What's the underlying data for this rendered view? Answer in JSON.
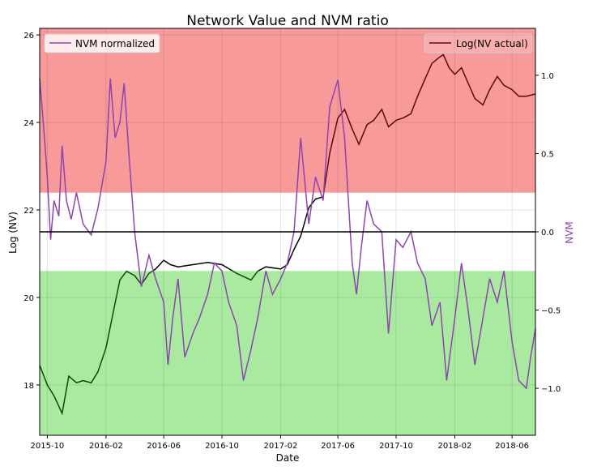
{
  "chart_data": {
    "type": "line",
    "title": "Network Value and NVM ratio",
    "xlabel": "Date",
    "ylabel_left": "Log (NV)",
    "ylabel_right": "NVM",
    "x_range": [
      "2015-09-15",
      "2018-07-20"
    ],
    "x_ticks": [
      "2015-10",
      "2016-02",
      "2016-06",
      "2016-10",
      "2017-02",
      "2017-06",
      "2017-10",
      "2018-02",
      "2018-06"
    ],
    "x_tick_dates": [
      "2015-10-01",
      "2016-02-01",
      "2016-06-01",
      "2016-10-01",
      "2017-02-01",
      "2017-06-01",
      "2017-10-01",
      "2018-02-01",
      "2018-06-01"
    ],
    "ylim_left": [
      16.85,
      26.15
    ],
    "yticks_left": [
      18,
      20,
      22,
      24,
      26
    ],
    "ylim_right": [
      -1.3,
      1.3
    ],
    "yticks_right": [
      "1.0",
      "0.5",
      "0.0",
      "−0.5",
      "−1.0"
    ],
    "ytick_values_right": [
      1.0,
      0.5,
      0.0,
      -0.5,
      -1.0
    ],
    "grid": true,
    "bands": [
      {
        "name": "overvalued",
        "nvm_from": 0.25,
        "nvm_to": 1.3,
        "color": "#f89a9a"
      },
      {
        "name": "undervalued",
        "nvm_from": -1.3,
        "nvm_to": -0.25,
        "color": "#aaeaa0"
      }
    ],
    "zero_line": {
      "nvm": 0.0,
      "color": "#000000"
    },
    "series": [
      {
        "name": "Log(NV actual)",
        "axis": "left",
        "color_high": "#5a0a0a",
        "color_mid": "#000000",
        "color_low": "#0a4a0a",
        "points": [
          [
            "2015-09-15",
            18.45
          ],
          [
            "2015-10-01",
            18.0
          ],
          [
            "2015-10-15",
            17.75
          ],
          [
            "2015-11-01",
            17.35
          ],
          [
            "2015-11-15",
            18.2
          ],
          [
            "2015-12-01",
            18.05
          ],
          [
            "2015-12-15",
            18.1
          ],
          [
            "2016-01-01",
            18.05
          ],
          [
            "2016-01-15",
            18.3
          ],
          [
            "2016-02-01",
            18.85
          ],
          [
            "2016-02-15",
            19.6
          ],
          [
            "2016-03-01",
            20.4
          ],
          [
            "2016-03-15",
            20.6
          ],
          [
            "2016-04-01",
            20.5
          ],
          [
            "2016-04-15",
            20.3
          ],
          [
            "2016-05-01",
            20.55
          ],
          [
            "2016-05-15",
            20.65
          ],
          [
            "2016-06-01",
            20.85
          ],
          [
            "2016-06-15",
            20.75
          ],
          [
            "2016-07-01",
            20.7
          ],
          [
            "2016-08-01",
            20.75
          ],
          [
            "2016-09-01",
            20.8
          ],
          [
            "2016-10-01",
            20.75
          ],
          [
            "2016-11-01",
            20.55
          ],
          [
            "2016-12-01",
            20.4
          ],
          [
            "2016-12-15",
            20.6
          ],
          [
            "2017-01-01",
            20.7
          ],
          [
            "2017-02-01",
            20.65
          ],
          [
            "2017-02-15",
            20.75
          ],
          [
            "2017-03-01",
            21.1
          ],
          [
            "2017-03-15",
            21.4
          ],
          [
            "2017-04-01",
            22.05
          ],
          [
            "2017-04-15",
            22.25
          ],
          [
            "2017-05-01",
            22.3
          ],
          [
            "2017-05-15",
            23.3
          ],
          [
            "2017-06-01",
            24.1
          ],
          [
            "2017-06-15",
            24.3
          ],
          [
            "2017-07-01",
            23.85
          ],
          [
            "2017-07-15",
            23.5
          ],
          [
            "2017-08-01",
            23.95
          ],
          [
            "2017-08-15",
            24.05
          ],
          [
            "2017-09-01",
            24.3
          ],
          [
            "2017-09-15",
            23.9
          ],
          [
            "2017-10-01",
            24.05
          ],
          [
            "2017-10-15",
            24.1
          ],
          [
            "2017-11-01",
            24.2
          ],
          [
            "2017-11-15",
            24.6
          ],
          [
            "2017-12-01",
            25.0
          ],
          [
            "2017-12-15",
            25.35
          ],
          [
            "2018-01-01",
            25.5
          ],
          [
            "2018-01-08",
            25.55
          ],
          [
            "2018-01-20",
            25.25
          ],
          [
            "2018-02-01",
            25.1
          ],
          [
            "2018-02-15",
            25.25
          ],
          [
            "2018-03-01",
            24.9
          ],
          [
            "2018-03-15",
            24.55
          ],
          [
            "2018-04-01",
            24.4
          ],
          [
            "2018-04-15",
            24.75
          ],
          [
            "2018-05-01",
            25.05
          ],
          [
            "2018-05-15",
            24.85
          ],
          [
            "2018-06-01",
            24.75
          ],
          [
            "2018-06-15",
            24.6
          ],
          [
            "2018-07-01",
            24.6
          ],
          [
            "2018-07-20",
            24.65
          ]
        ]
      },
      {
        "name": "NVM normalized",
        "axis": "right",
        "color": "#8e44ad",
        "points": [
          [
            "2015-09-15",
            0.98
          ],
          [
            "2015-09-25",
            0.6
          ],
          [
            "2015-10-01",
            0.35
          ],
          [
            "2015-10-08",
            -0.05
          ],
          [
            "2015-10-15",
            0.2
          ],
          [
            "2015-10-25",
            0.1
          ],
          [
            "2015-11-01",
            0.55
          ],
          [
            "2015-11-10",
            0.2
          ],
          [
            "2015-11-20",
            0.08
          ],
          [
            "2015-12-01",
            0.25
          ],
          [
            "2015-12-15",
            0.05
          ],
          [
            "2016-01-01",
            -0.02
          ],
          [
            "2016-01-15",
            0.15
          ],
          [
            "2016-02-01",
            0.45
          ],
          [
            "2016-02-10",
            0.98
          ],
          [
            "2016-02-20",
            0.6
          ],
          [
            "2016-03-01",
            0.7
          ],
          [
            "2016-03-10",
            0.95
          ],
          [
            "2016-03-20",
            0.5
          ],
          [
            "2016-04-01",
            0.0
          ],
          [
            "2016-04-15",
            -0.35
          ],
          [
            "2016-05-01",
            -0.15
          ],
          [
            "2016-05-15",
            -0.3
          ],
          [
            "2016-06-01",
            -0.45
          ],
          [
            "2016-06-10",
            -0.85
          ],
          [
            "2016-06-20",
            -0.55
          ],
          [
            "2016-07-01",
            -0.3
          ],
          [
            "2016-07-15",
            -0.8
          ],
          [
            "2016-08-01",
            -0.65
          ],
          [
            "2016-08-15",
            -0.55
          ],
          [
            "2016-09-01",
            -0.4
          ],
          [
            "2016-09-15",
            -0.2
          ],
          [
            "2016-10-01",
            -0.25
          ],
          [
            "2016-10-15",
            -0.45
          ],
          [
            "2016-11-01",
            -0.6
          ],
          [
            "2016-11-15",
            -0.95
          ],
          [
            "2016-12-01",
            -0.75
          ],
          [
            "2016-12-15",
            -0.55
          ],
          [
            "2017-01-01",
            -0.25
          ],
          [
            "2017-01-15",
            -0.4
          ],
          [
            "2017-02-01",
            -0.3
          ],
          [
            "2017-02-15",
            -0.2
          ],
          [
            "2017-03-01",
            0.0
          ],
          [
            "2017-03-15",
            0.6
          ],
          [
            "2017-04-01",
            0.05
          ],
          [
            "2017-04-15",
            0.35
          ],
          [
            "2017-05-01",
            0.2
          ],
          [
            "2017-05-15",
            0.8
          ],
          [
            "2017-06-01",
            0.97
          ],
          [
            "2017-06-15",
            0.6
          ],
          [
            "2017-07-01",
            -0.2
          ],
          [
            "2017-07-10",
            -0.4
          ],
          [
            "2017-07-20",
            -0.1
          ],
          [
            "2017-08-01",
            0.2
          ],
          [
            "2017-08-15",
            0.05
          ],
          [
            "2017-09-01",
            0.0
          ],
          [
            "2017-09-15",
            -0.65
          ],
          [
            "2017-10-01",
            -0.05
          ],
          [
            "2017-10-15",
            -0.1
          ],
          [
            "2017-11-01",
            0.0
          ],
          [
            "2017-11-15",
            -0.2
          ],
          [
            "2017-12-01",
            -0.3
          ],
          [
            "2017-12-15",
            -0.6
          ],
          [
            "2018-01-01",
            -0.45
          ],
          [
            "2018-01-15",
            -0.95
          ],
          [
            "2018-02-01",
            -0.55
          ],
          [
            "2018-02-15",
            -0.2
          ],
          [
            "2018-03-01",
            -0.5
          ],
          [
            "2018-03-15",
            -0.85
          ],
          [
            "2018-04-01",
            -0.55
          ],
          [
            "2018-04-15",
            -0.3
          ],
          [
            "2018-05-01",
            -0.45
          ],
          [
            "2018-05-15",
            -0.25
          ],
          [
            "2018-06-01",
            -0.7
          ],
          [
            "2018-06-15",
            -0.95
          ],
          [
            "2018-07-01",
            -1.0
          ],
          [
            "2018-07-10",
            -0.8
          ],
          [
            "2018-07-20",
            -0.62
          ]
        ]
      }
    ]
  }
}
